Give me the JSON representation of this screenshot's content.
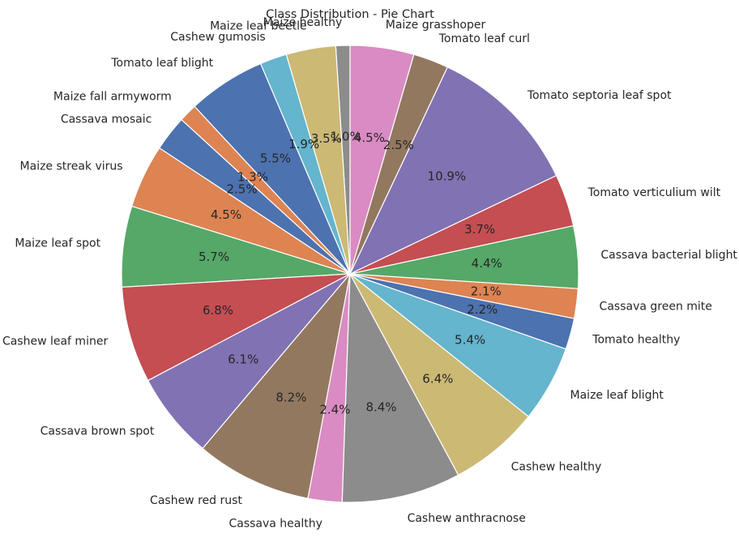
{
  "chart_data": {
    "type": "pie",
    "title": "Class Distribution - Pie Chart",
    "start_angle_deg": 90,
    "direction": "counterclockwise",
    "slices": [
      {
        "label": "Maize healthy",
        "value": 1.0,
        "pct_label": "1.0%",
        "color": "#8c8c8c"
      },
      {
        "label": "Maize leaf beetle",
        "value": 3.5,
        "pct_label": "3.5%",
        "color": "#ccb974"
      },
      {
        "label": "Cashew gumosis",
        "value": 1.9,
        "pct_label": "1.9%",
        "color": "#64b5cd"
      },
      {
        "label": "Tomato leaf blight",
        "value": 5.5,
        "pct_label": "5.5%",
        "color": "#4c72b0"
      },
      {
        "label": "Maize fall armyworm",
        "value": 1.3,
        "pct_label": "1.3%",
        "color": "#dd8452"
      },
      {
        "label": "Cassava mosaic",
        "value": 2.5,
        "pct_label": "2.5%",
        "color": "#4c72b0"
      },
      {
        "label": "Maize streak virus",
        "value": 4.5,
        "pct_label": "4.5%",
        "color": "#dd8452"
      },
      {
        "label": "Maize leaf spot",
        "value": 5.7,
        "pct_label": "5.7%",
        "color": "#55a868"
      },
      {
        "label": "Cashew leaf miner",
        "value": 6.8,
        "pct_label": "6.8%",
        "color": "#c44e52"
      },
      {
        "label": "Cassava brown spot",
        "value": 6.1,
        "pct_label": "6.1%",
        "color": "#8172b3"
      },
      {
        "label": "Cashew red rust",
        "value": 8.2,
        "pct_label": "8.2%",
        "color": "#937860"
      },
      {
        "label": "Cassava healthy",
        "value": 2.4,
        "pct_label": "2.4%",
        "color": "#da8bc3"
      },
      {
        "label": "Cashew anthracnose",
        "value": 8.4,
        "pct_label": "8.4%",
        "color": "#8c8c8c"
      },
      {
        "label": "Cashew healthy",
        "value": 6.4,
        "pct_label": "6.4%",
        "color": "#ccb974"
      },
      {
        "label": "Maize leaf blight",
        "value": 5.4,
        "pct_label": "5.4%",
        "color": "#64b5cd"
      },
      {
        "label": "Tomato healthy",
        "value": 2.2,
        "pct_label": "2.2%",
        "color": "#4c72b0"
      },
      {
        "label": "Cassava green mite",
        "value": 2.1,
        "pct_label": "2.1%",
        "color": "#dd8452"
      },
      {
        "label": "Cassava bacterial blight",
        "value": 4.4,
        "pct_label": "4.4%",
        "color": "#55a868"
      },
      {
        "label": "Tomato verticulium wilt",
        "value": 3.7,
        "pct_label": "3.7%",
        "color": "#c44e52"
      },
      {
        "label": "Tomato septoria leaf spot",
        "value": 10.9,
        "pct_label": "10.9%",
        "color": "#8172b3"
      },
      {
        "label": "Tomato leaf curl",
        "value": 2.5,
        "pct_label": "2.5%",
        "color": "#937860"
      },
      {
        "label": "Maize grasshoper",
        "value": 4.5,
        "pct_label": "4.5%",
        "color": "#da8bc3"
      }
    ]
  }
}
